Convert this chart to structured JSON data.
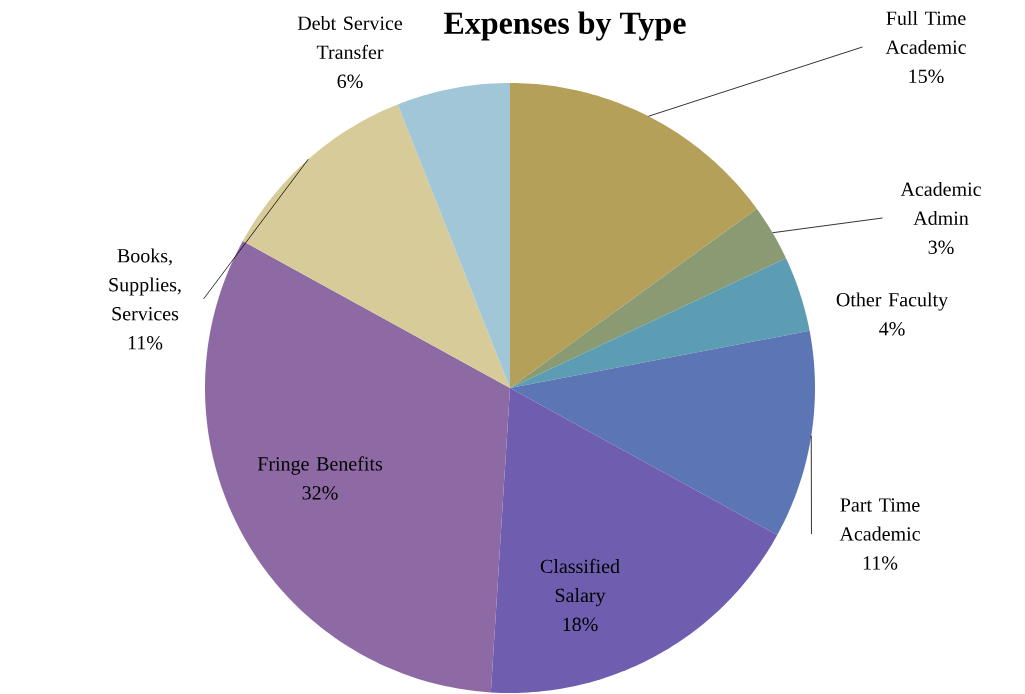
{
  "chart_data": {
    "type": "pie",
    "title": "Expenses by Type",
    "categories": [
      "Full Time Academic",
      "Academic Admin",
      "Other Faculty",
      "Part Time Academic",
      "Classified Salary",
      "Fringe Benefits",
      "Books, Supplies, Services",
      "Debt Service Transfer"
    ],
    "values": [
      15,
      3,
      4,
      11,
      18,
      32,
      11,
      6
    ],
    "value_labels": [
      "15%",
      "3%",
      "4%",
      "11%",
      "18%",
      "32%",
      "11%",
      "6%"
    ],
    "colors": [
      "#b5a05a",
      "#8a9a72",
      "#5d9db3",
      "#5b75b5",
      "#6f5db0",
      "#8e6aa5",
      "#d8cb9a",
      "#a0c6d8"
    ]
  }
}
